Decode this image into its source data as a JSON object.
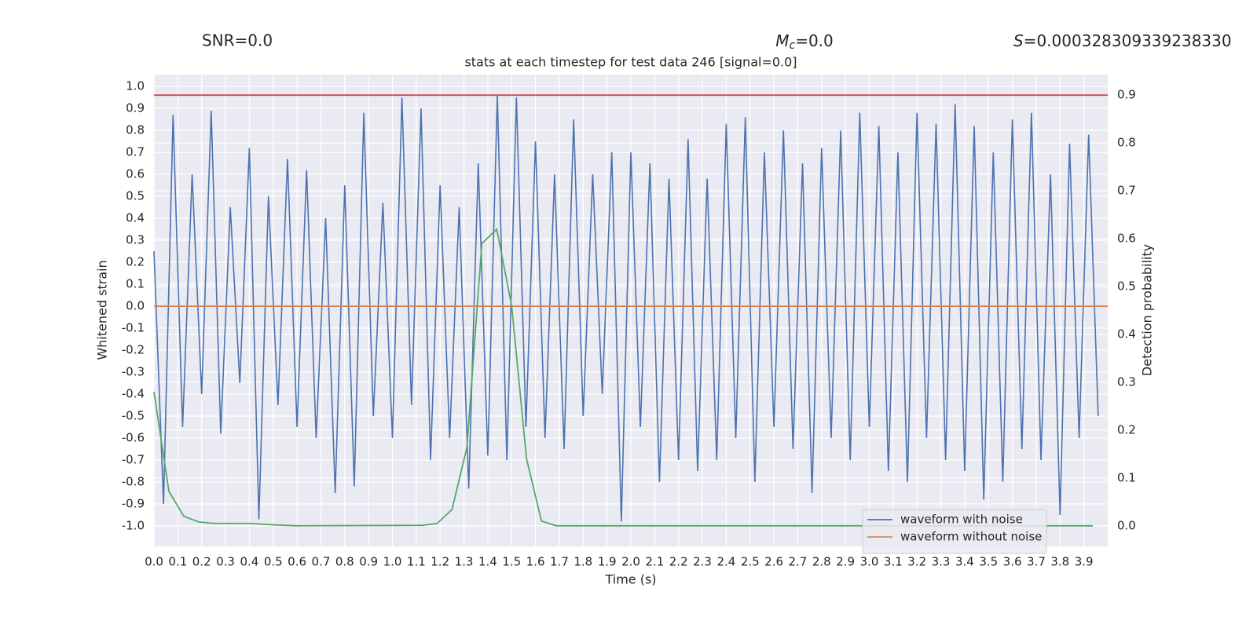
{
  "chart_data": {
    "type": "line",
    "title": "stats at each timestep for test data 246 [signal=0.0]",
    "annotations": [
      {
        "text": "SNR=0.0"
      },
      {
        "symbol": "M",
        "sub": "c",
        "text": "=0.0"
      },
      {
        "symbol": "S",
        "text": "=0.000328309339238330"
      }
    ],
    "xlabel": "Time (s)",
    "ylabel": "Whitened strain",
    "y2label": "Detection probability",
    "xlim": [
      0,
      4.0
    ],
    "ylim": [
      -1.093,
      1.054
    ],
    "y2lim": [
      -0.043,
      0.943
    ],
    "xticks": [
      {
        "value": 0,
        "label": "0.0"
      },
      0.1,
      0.2,
      0.3,
      0.4,
      0.5,
      0.6,
      0.7,
      0.8,
      0.9,
      {
        "value": 1,
        "label": "1.0"
      },
      1.1,
      1.2,
      1.3,
      1.4,
      1.5,
      1.6,
      1.7,
      1.8,
      1.9,
      {
        "value": 2,
        "label": "2.0"
      },
      2.1,
      2.2,
      2.3,
      2.4,
      2.5,
      2.6,
      2.7,
      2.8,
      2.9,
      {
        "value": 3,
        "label": "3.0"
      },
      3.1,
      3.2,
      3.3,
      3.4,
      3.5,
      3.6,
      3.7,
      3.8,
      3.9
    ],
    "yticks": [
      {
        "value": 1,
        "label": "1.0"
      },
      0.9,
      0.8,
      0.7,
      0.6,
      0.5,
      0.4,
      0.3,
      0.2,
      0.1,
      {
        "value": 0,
        "label": "0.0"
      },
      -0.1,
      -0.2,
      -0.3,
      -0.4,
      -0.5,
      -0.6,
      -0.7,
      -0.8,
      -0.9,
      {
        "value": -1,
        "label": "-1.0"
      }
    ],
    "y2ticks": [
      0.9,
      0.8,
      0.7,
      0.6,
      0.5,
      0.4,
      0.3,
      0.2,
      0.1,
      {
        "value": 0,
        "label": "0.0"
      }
    ],
    "grid": true,
    "legend": "lower right",
    "series": [
      {
        "name": "waveform with noise",
        "color": "#4c72b0",
        "x": [
          0,
          0.04,
          0.08,
          0.12,
          0.16,
          0.2,
          0.24,
          0.28,
          0.32,
          0.36,
          0.4,
          0.44,
          0.48,
          0.52,
          0.56,
          0.6,
          0.64,
          0.68,
          0.72,
          0.76,
          0.8,
          0.84,
          0.88,
          0.92,
          0.96,
          1,
          1.04,
          1.08,
          1.12,
          1.16,
          1.2,
          1.24,
          1.28,
          1.32,
          1.36,
          1.4,
          1.44,
          1.48,
          1.52,
          1.56,
          1.6,
          1.64,
          1.68,
          1.72,
          1.76,
          1.8,
          1.84,
          1.88,
          1.92,
          1.96,
          2,
          2.04,
          2.08,
          2.12,
          2.16,
          2.2,
          2.24,
          2.28,
          2.32,
          2.36,
          2.4,
          2.44,
          2.48,
          2.52,
          2.56,
          2.6,
          2.64,
          2.68,
          2.72,
          2.76,
          2.8,
          2.84,
          2.88,
          2.92,
          2.96,
          3,
          3.04,
          3.08,
          3.12,
          3.16,
          3.2,
          3.24,
          3.28,
          3.32,
          3.36,
          3.4,
          3.44,
          3.48,
          3.52,
          3.56,
          3.6,
          3.64,
          3.68,
          3.72,
          3.76,
          3.8,
          3.84,
          3.88,
          3.92,
          3.96
        ],
        "values": [
          0.25,
          -0.9,
          0.87,
          -0.55,
          0.6,
          -0.4,
          0.89,
          -0.58,
          0.45,
          -0.35,
          0.72,
          -0.97,
          0.5,
          -0.45,
          0.67,
          -0.55,
          0.62,
          -0.6,
          0.4,
          -0.85,
          0.55,
          -0.82,
          0.88,
          -0.5,
          0.47,
          -0.6,
          0.95,
          -0.45,
          0.9,
          -0.7,
          0.55,
          -0.6,
          0.45,
          -0.83,
          0.65,
          -0.68,
          0.96,
          -0.7,
          0.95,
          -0.55,
          0.75,
          -0.6,
          0.6,
          -0.65,
          0.85,
          -0.5,
          0.6,
          -0.4,
          0.7,
          -0.98,
          0.7,
          -0.55,
          0.65,
          -0.8,
          0.58,
          -0.7,
          0.76,
          -0.75,
          0.58,
          -0.7,
          0.83,
          -0.6,
          0.86,
          -0.8,
          0.7,
          -0.55,
          0.8,
          -0.65,
          0.65,
          -0.85,
          0.72,
          -0.6,
          0.8,
          -0.7,
          0.88,
          -0.55,
          0.82,
          -0.75,
          0.7,
          -0.8,
          0.88,
          -0.6,
          0.83,
          -0.7,
          0.92,
          -0.75,
          0.82,
          -0.88,
          0.7,
          -0.8,
          0.85,
          -0.65,
          0.88,
          -0.7,
          0.6,
          -0.95,
          0.74,
          -0.6,
          0.78,
          -0.5
        ]
      },
      {
        "name": "waveform without noise",
        "color": "#dd8452",
        "x": [
          0,
          4.0
        ],
        "values": [
          0,
          0
        ]
      },
      {
        "color": "#55a868",
        "axis": "y2",
        "x": [
          0,
          0.0625,
          0.125,
          0.1875,
          0.25,
          0.4,
          0.5,
          0.6,
          1.125,
          1.1875,
          1.25,
          1.3125,
          1.375,
          1.4375,
          1.5,
          1.5625,
          1.625,
          1.6875,
          3.9375
        ],
        "values": [
          0.28,
          0.072,
          0.02,
          0.008,
          0.005,
          0.005,
          0.002,
          0,
          0.001,
          0.005,
          0.034,
          0.164,
          0.59,
          0.62,
          0.46,
          0.14,
          0.01,
          0,
          0
        ]
      },
      {
        "color": "#c44e52",
        "axis": "y2",
        "x": [
          0,
          4.0
        ],
        "values": [
          0.9,
          0.9
        ]
      }
    ]
  }
}
